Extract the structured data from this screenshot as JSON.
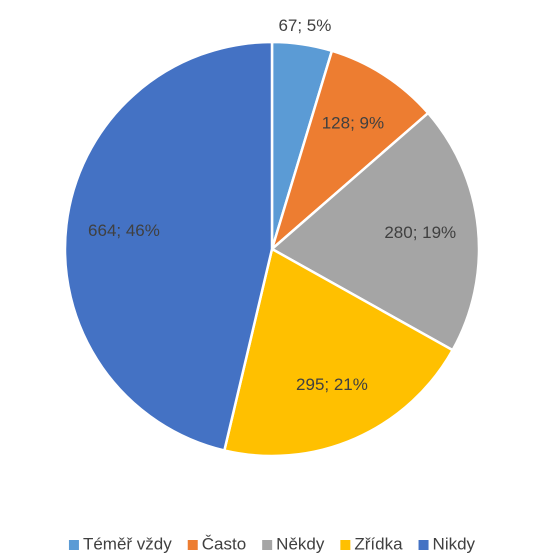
{
  "chart_data": {
    "type": "pie",
    "categories": [
      "Téměř vždy",
      "Často",
      "Někdy",
      "Zřídka",
      "Nikdy"
    ],
    "values": [
      67,
      128,
      280,
      295,
      664
    ],
    "value_labels": [
      "67; 5%",
      "128; 9%",
      "280; 19%",
      "295; 21%",
      "664; 46%"
    ],
    "colors": [
      "#5b9bd5",
      "#ed7d31",
      "#a5a5a5",
      "#ffc000",
      "#4472c4"
    ],
    "legend": "bottom"
  }
}
